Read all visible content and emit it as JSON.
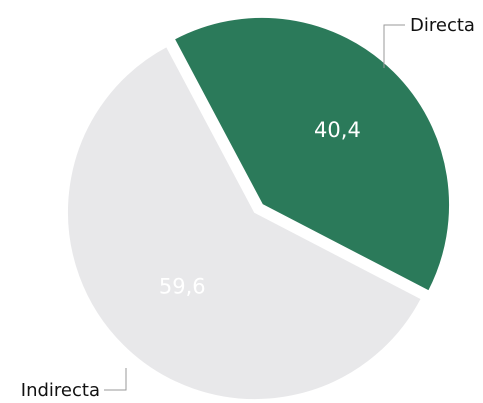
{
  "chart_data": {
    "type": "pie",
    "slices": [
      {
        "label": "Directa",
        "value": 40.4,
        "value_label": "40,4",
        "color": "#2b7a5a",
        "exploded": true
      },
      {
        "label": "Indirecta",
        "value": 59.6,
        "value_label": "59,6",
        "color": "#e8e8ea",
        "exploded": false
      }
    ],
    "legend": "none"
  }
}
